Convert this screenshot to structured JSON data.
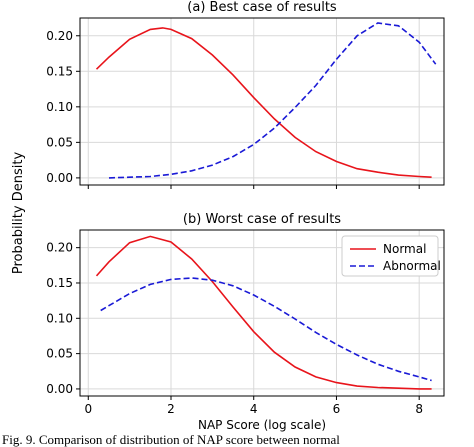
{
  "y_shared_label": "Probability Density",
  "caption_fragment": "Fig. 9.   Comparison of distribution of NAP score between normal",
  "colors": {
    "normal": "#e8141b",
    "abnormal": "#1a1ad6",
    "grid": "#d9d9d9",
    "axes": "#000000"
  },
  "chart_data": [
    {
      "type": "line",
      "title": "(a) Best case of results",
      "xlabel": "",
      "ylabel": "",
      "xlim": [
        -0.2,
        8.6
      ],
      "ylim": [
        -0.01,
        0.225
      ],
      "xticks": [
        0,
        2,
        4,
        6,
        8
      ],
      "xtick_labels": [],
      "yticks": [
        0.0,
        0.05,
        0.1,
        0.15,
        0.2
      ],
      "ytick_labels": [
        "0.00",
        "0.05",
        "0.10",
        "0.15",
        "0.20"
      ],
      "grid": true,
      "legend": null,
      "series": [
        {
          "name": "Normal",
          "color": "#e8141b",
          "dash": "solid",
          "x": [
            0.2,
            0.5,
            1.0,
            1.5,
            1.8,
            2.0,
            2.5,
            3.0,
            3.5,
            4.0,
            4.5,
            5.0,
            5.5,
            6.0,
            6.5,
            7.0,
            7.5,
            8.0,
            8.3
          ],
          "y": [
            0.153,
            0.17,
            0.195,
            0.209,
            0.211,
            0.209,
            0.196,
            0.173,
            0.145,
            0.113,
            0.083,
            0.057,
            0.037,
            0.023,
            0.013,
            0.008,
            0.004,
            0.002,
            0.001
          ]
        },
        {
          "name": "Abnormal",
          "color": "#1a1ad6",
          "dash": "dashed",
          "x": [
            0.5,
            1.0,
            1.5,
            2.0,
            2.5,
            3.0,
            3.5,
            4.0,
            4.5,
            5.0,
            5.5,
            6.0,
            6.5,
            7.0,
            7.5,
            8.0,
            8.4
          ],
          "y": [
            0.0,
            0.001,
            0.002,
            0.005,
            0.01,
            0.018,
            0.03,
            0.047,
            0.07,
            0.099,
            0.13,
            0.167,
            0.2,
            0.218,
            0.214,
            0.191,
            0.16
          ]
        }
      ]
    },
    {
      "type": "line",
      "title": "(b) Worst case of results",
      "xlabel": "NAP Score (log scale)",
      "ylabel": "",
      "xlim": [
        -0.2,
        8.6
      ],
      "ylim": [
        -0.01,
        0.225
      ],
      "xticks": [
        0,
        2,
        4,
        6,
        8
      ],
      "xtick_labels": [
        "0",
        "2",
        "4",
        "6",
        "8"
      ],
      "yticks": [
        0.0,
        0.05,
        0.1,
        0.15,
        0.2
      ],
      "ytick_labels": [
        "0.00",
        "0.05",
        "0.10",
        "0.15",
        "0.20"
      ],
      "grid": true,
      "legend": "top-right",
      "series": [
        {
          "name": "Normal",
          "color": "#e8141b",
          "dash": "solid",
          "x": [
            0.2,
            0.5,
            1.0,
            1.5,
            2.0,
            2.5,
            3.0,
            3.5,
            4.0,
            4.5,
            5.0,
            5.5,
            6.0,
            6.5,
            7.0,
            7.5,
            8.0,
            8.3
          ],
          "y": [
            0.16,
            0.18,
            0.207,
            0.216,
            0.208,
            0.184,
            0.152,
            0.116,
            0.081,
            0.052,
            0.031,
            0.017,
            0.009,
            0.004,
            0.002,
            0.001,
            0.0,
            0.0
          ]
        },
        {
          "name": "Abnormal",
          "color": "#1a1ad6",
          "dash": "dashed",
          "x": [
            0.3,
            0.5,
            1.0,
            1.5,
            2.0,
            2.5,
            3.0,
            3.5,
            4.0,
            4.5,
            5.0,
            5.5,
            6.0,
            6.5,
            7.0,
            7.5,
            8.0,
            8.3
          ],
          "y": [
            0.111,
            0.118,
            0.135,
            0.148,
            0.155,
            0.157,
            0.154,
            0.146,
            0.133,
            0.117,
            0.099,
            0.08,
            0.063,
            0.048,
            0.035,
            0.025,
            0.017,
            0.012
          ]
        }
      ]
    }
  ]
}
